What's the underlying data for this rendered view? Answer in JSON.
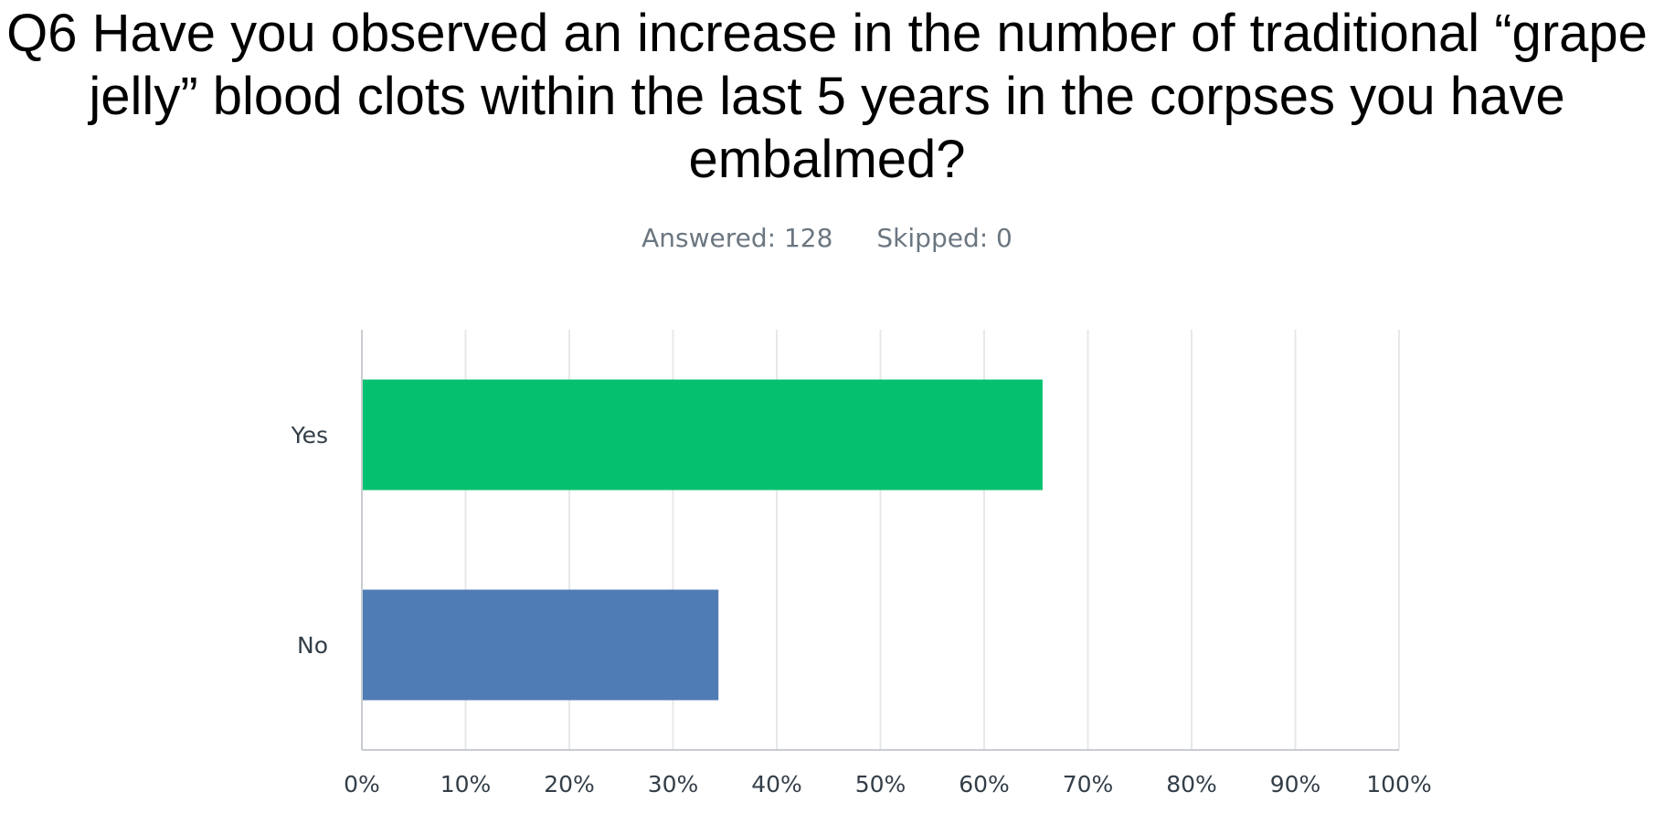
{
  "question": {
    "title": "Q6 Have you observed an increase in the number of traditional “grape jelly” blood clots within the last 5 years in the corpses you have embalmed?",
    "answered_label": "Answered: 128",
    "skipped_label": "Skipped: 0"
  },
  "chart_data": {
    "type": "bar",
    "orientation": "horizontal",
    "categories": [
      "Yes",
      "No"
    ],
    "values": [
      65.63,
      34.38
    ],
    "colors": [
      "#05c16f",
      "#507cb5"
    ],
    "xlim": [
      0,
      100
    ],
    "x_ticks": [
      "0%",
      "10%",
      "20%",
      "30%",
      "40%",
      "50%",
      "60%",
      "70%",
      "80%",
      "90%",
      "100%"
    ],
    "grid": true,
    "legend": "none"
  }
}
